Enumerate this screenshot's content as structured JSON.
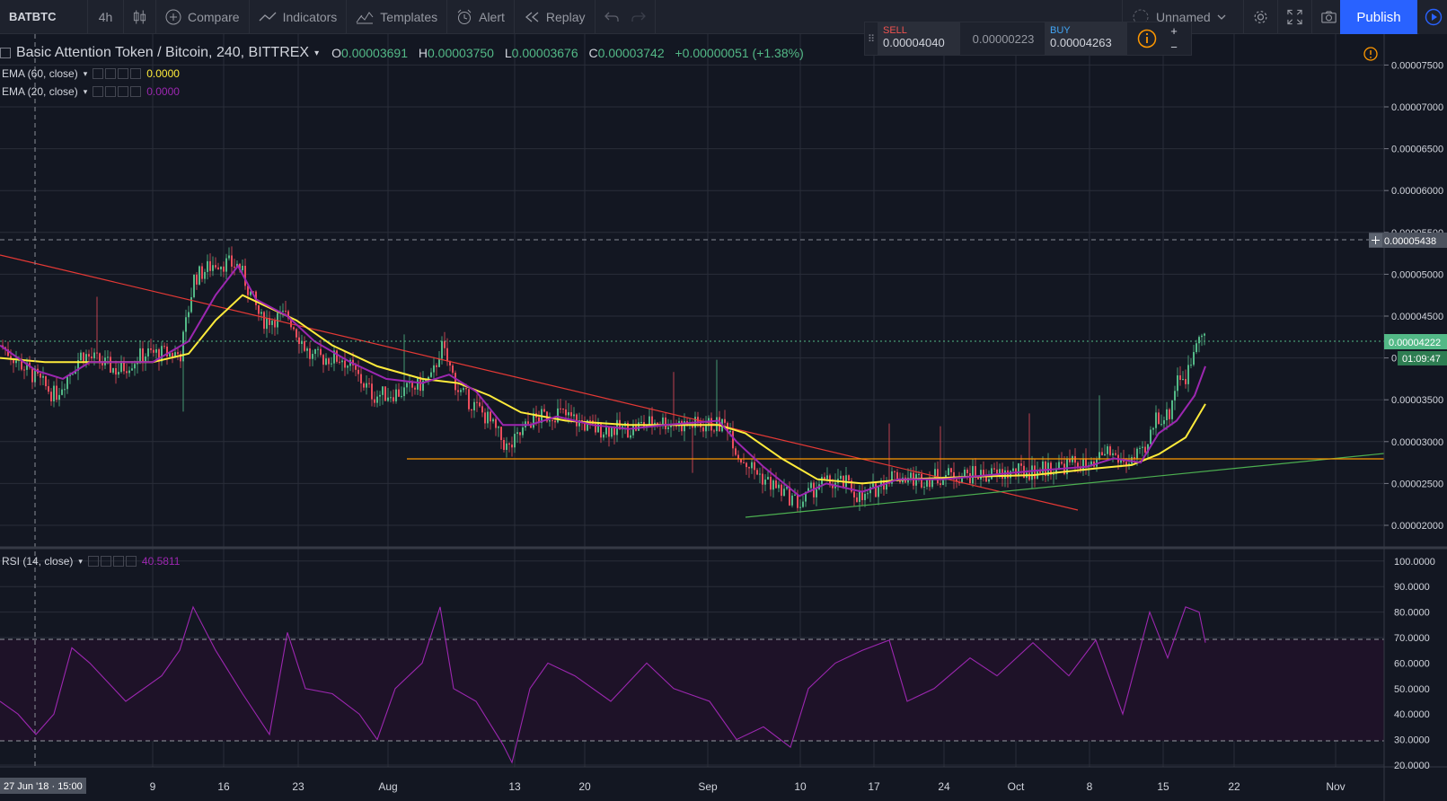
{
  "toolbar": {
    "symbol": "BATBTC",
    "interval": "4h",
    "compare": "Compare",
    "indicators": "Indicators",
    "templates": "Templates",
    "alert": "Alert",
    "replay": "Replay",
    "layout_name": "Unnamed",
    "publish": "Publish"
  },
  "trade": {
    "sell_label": "SELL",
    "sell_price": "0.00004040",
    "spread": "0.00000223",
    "buy_label": "BUY",
    "buy_price": "0.00004263"
  },
  "legend": {
    "title": "Basic Attention Token / Bitcoin, 240, BITTREX",
    "o_label": "O",
    "o": "0.00003691",
    "h_label": "H",
    "h": "0.00003750",
    "l_label": "L",
    "l": "0.00003676",
    "c_label": "C",
    "c": "0.00003742",
    "change": "+0.00000051 (+1.38%)"
  },
  "indicators": [
    {
      "label": "EMA (60, close)",
      "value": "0.0000",
      "color": "#ffeb3b"
    },
    {
      "label": "EMA (20, close)",
      "value": "0.0000",
      "color": "#9c27b0"
    }
  ],
  "rsi": {
    "label": "RSI (14, close)",
    "value": "40.5811",
    "color": "#9c27b0"
  },
  "colors": {
    "up": "#53b987",
    "down": "#eb4d5c",
    "background": "#131722",
    "grid": "#2a2e39",
    "trendline_red": "#e53935",
    "trendline_green": "#4caf50",
    "support_orange": "#ff9800"
  },
  "crosshair": {
    "time_label": "27 Jun '18 · 15:00",
    "price_label": "0.00005438"
  },
  "last_price": {
    "price": "0.00004222",
    "countdown": "01:09:47"
  },
  "chart_data": {
    "type": "candlestick",
    "x_labels": [
      "9",
      "16",
      "23",
      "Aug",
      "13",
      "20",
      "Sep",
      "10",
      "17",
      "24",
      "Oct",
      "8",
      "15",
      "22",
      "Nov"
    ],
    "price_ticks": [
      "0.00007500",
      "0.00007000",
      "0.00006500",
      "0.00006000",
      "0.00005500",
      "0.00005000",
      "0.00004500",
      "0.00004000",
      "0.00003500",
      "0.00003000",
      "0.00002500",
      "0.00002000"
    ],
    "rsi_ticks": [
      "100.0000",
      "90.0000",
      "80.0000",
      "70.0000",
      "60.0000",
      "50.0000",
      "40.0000",
      "30.0000",
      "20.0000"
    ],
    "close_path": [
      [
        0,
        4.15
      ],
      [
        40,
        3.75
      ],
      [
        60,
        3.55
      ],
      [
        90,
        4.05
      ],
      [
        130,
        3.85
      ],
      [
        160,
        4.05
      ],
      [
        200,
        4.05
      ],
      [
        215,
        4.95
      ],
      [
        240,
        5.15
      ],
      [
        265,
        5.1
      ],
      [
        290,
        4.45
      ],
      [
        320,
        4.5
      ],
      [
        345,
        4.0
      ],
      [
        380,
        4.0
      ],
      [
        415,
        3.55
      ],
      [
        450,
        3.6
      ],
      [
        480,
        3.75
      ],
      [
        490,
        4.15
      ],
      [
        510,
        3.6
      ],
      [
        540,
        3.3
      ],
      [
        565,
        2.9
      ],
      [
        590,
        3.25
      ],
      [
        620,
        3.35
      ],
      [
        660,
        3.15
      ],
      [
        700,
        3.15
      ],
      [
        730,
        3.25
      ],
      [
        760,
        3.2
      ],
      [
        810,
        3.2
      ],
      [
        820,
        2.85
      ],
      [
        850,
        2.55
      ],
      [
        890,
        2.25
      ],
      [
        910,
        2.5
      ],
      [
        940,
        2.5
      ],
      [
        960,
        2.3
      ],
      [
        990,
        2.6
      ],
      [
        1020,
        2.55
      ],
      [
        1060,
        2.6
      ],
      [
        1100,
        2.6
      ],
      [
        1150,
        2.65
      ],
      [
        1200,
        2.75
      ],
      [
        1215,
        2.65
      ],
      [
        1230,
        2.9
      ],
      [
        1250,
        2.75
      ],
      [
        1275,
        2.85
      ],
      [
        1285,
        3.3
      ],
      [
        1300,
        3.3
      ],
      [
        1310,
        3.8
      ],
      [
        1320,
        3.75
      ],
      [
        1335,
        4.4
      ],
      [
        1342,
        4.22
      ]
    ],
    "ema20_path": [
      [
        0,
        4.15
      ],
      [
        40,
        3.85
      ],
      [
        70,
        3.75
      ],
      [
        100,
        3.95
      ],
      [
        140,
        3.95
      ],
      [
        170,
        3.95
      ],
      [
        210,
        4.2
      ],
      [
        240,
        4.75
      ],
      [
        265,
        5.1
      ],
      [
        285,
        4.7
      ],
      [
        320,
        4.5
      ],
      [
        350,
        4.2
      ],
      [
        390,
        3.95
      ],
      [
        430,
        3.75
      ],
      [
        470,
        3.7
      ],
      [
        500,
        3.8
      ],
      [
        530,
        3.6
      ],
      [
        560,
        3.2
      ],
      [
        590,
        3.2
      ],
      [
        620,
        3.3
      ],
      [
        660,
        3.2
      ],
      [
        700,
        3.15
      ],
      [
        740,
        3.2
      ],
      [
        800,
        3.25
      ],
      [
        820,
        3.0
      ],
      [
        850,
        2.7
      ],
      [
        890,
        2.35
      ],
      [
        920,
        2.5
      ],
      [
        960,
        2.4
      ],
      [
        1000,
        2.55
      ],
      [
        1050,
        2.55
      ],
      [
        1100,
        2.6
      ],
      [
        1150,
        2.65
      ],
      [
        1210,
        2.7
      ],
      [
        1240,
        2.8
      ],
      [
        1270,
        2.75
      ],
      [
        1290,
        3.1
      ],
      [
        1310,
        3.25
      ],
      [
        1330,
        3.55
      ],
      [
        1342,
        3.9
      ]
    ],
    "ema60_path": [
      [
        0,
        4.0
      ],
      [
        50,
        3.95
      ],
      [
        100,
        3.95
      ],
      [
        170,
        3.95
      ],
      [
        210,
        4.05
      ],
      [
        240,
        4.45
      ],
      [
        270,
        4.75
      ],
      [
        300,
        4.6
      ],
      [
        330,
        4.45
      ],
      [
        370,
        4.15
      ],
      [
        420,
        3.9
      ],
      [
        470,
        3.75
      ],
      [
        510,
        3.7
      ],
      [
        545,
        3.55
      ],
      [
        580,
        3.35
      ],
      [
        630,
        3.25
      ],
      [
        700,
        3.2
      ],
      [
        800,
        3.2
      ],
      [
        830,
        3.1
      ],
      [
        870,
        2.8
      ],
      [
        910,
        2.55
      ],
      [
        960,
        2.5
      ],
      [
        1010,
        2.55
      ],
      [
        1080,
        2.58
      ],
      [
        1150,
        2.6
      ],
      [
        1220,
        2.68
      ],
      [
        1260,
        2.72
      ],
      [
        1290,
        2.85
      ],
      [
        1320,
        3.05
      ],
      [
        1342,
        3.45
      ]
    ],
    "rsi_path": [
      [
        0,
        45
      ],
      [
        20,
        40
      ],
      [
        40,
        32
      ],
      [
        60,
        40
      ],
      [
        80,
        66
      ],
      [
        100,
        60
      ],
      [
        140,
        45
      ],
      [
        180,
        55
      ],
      [
        200,
        65
      ],
      [
        215,
        82
      ],
      [
        240,
        65
      ],
      [
        270,
        48
      ],
      [
        300,
        32
      ],
      [
        320,
        72
      ],
      [
        340,
        50
      ],
      [
        370,
        48
      ],
      [
        400,
        40
      ],
      [
        420,
        30
      ],
      [
        440,
        50
      ],
      [
        470,
        60
      ],
      [
        490,
        82
      ],
      [
        505,
        50
      ],
      [
        530,
        45
      ],
      [
        560,
        28
      ],
      [
        570,
        21
      ],
      [
        590,
        50
      ],
      [
        610,
        60
      ],
      [
        640,
        55
      ],
      [
        680,
        45
      ],
      [
        720,
        60
      ],
      [
        750,
        50
      ],
      [
        790,
        45
      ],
      [
        820,
        30
      ],
      [
        850,
        35
      ],
      [
        880,
        27
      ],
      [
        900,
        50
      ],
      [
        930,
        60
      ],
      [
        960,
        65
      ],
      [
        990,
        69
      ],
      [
        1010,
        45
      ],
      [
        1040,
        50
      ],
      [
        1080,
        62
      ],
      [
        1110,
        55
      ],
      [
        1150,
        68
      ],
      [
        1190,
        55
      ],
      [
        1220,
        69
      ],
      [
        1250,
        40
      ],
      [
        1280,
        80
      ],
      [
        1300,
        62
      ],
      [
        1320,
        82
      ],
      [
        1335,
        80
      ],
      [
        1342,
        68
      ]
    ]
  }
}
